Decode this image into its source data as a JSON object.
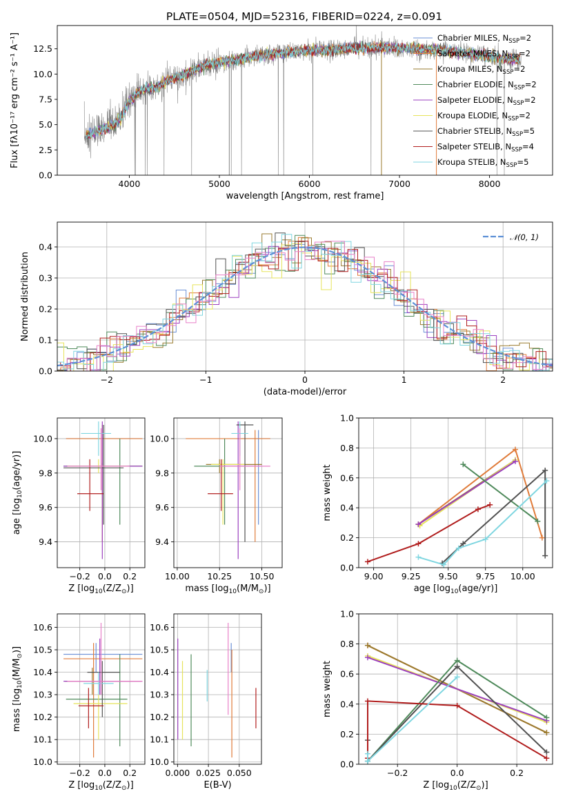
{
  "figure": {
    "title": "PLATE=0504, MJD=52316, FIBERID=0224, z=0.091",
    "colors": {
      "Chabrier MILES": "#6a8fd6",
      "Salpeter MILES": "#e07b39",
      "Kroupa MILES": "#9a7b2f",
      "Chabrier ELODIE": "#4f8a5b",
      "Salpeter ELODIE": "#9b3fbf",
      "Kroupa ELODIE": "#e6e35a",
      "Chabrier STELIB": "#505050",
      "Salpeter STELIB": "#b01c1c",
      "Kroupa STELIB": "#7fd6e0",
      "data": "#808080",
      "pink": "#e87fc8",
      "normal_curve": "#5b8fd6"
    }
  },
  "chart_data": [
    {
      "id": "spectrum",
      "type": "line",
      "xlabel": "wavelength [Angstrom, rest frame]",
      "ylabel": "Flux [fλ10⁻¹⁷ erg cm⁻² s⁻¹ A⁻¹]",
      "xlim": [
        3200,
        8700
      ],
      "ylim": [
        0,
        14.8
      ],
      "xticks": [
        4000,
        5000,
        6000,
        7000,
        8000
      ],
      "yticks": [
        0.0,
        2.5,
        5.0,
        7.5,
        10.0,
        12.5
      ],
      "x_range_data": [
        3500,
        8350
      ],
      "envelope": {
        "x": [
          3500,
          3600,
          3700,
          3800,
          3900,
          4000,
          4100,
          4200,
          4300,
          4400,
          4500,
          4700,
          4900,
          5100,
          5300,
          5500,
          5700,
          6000,
          6300,
          6600,
          6900,
          7200,
          7500,
          7800,
          8100,
          8350
        ],
        "y": [
          3.8,
          4.2,
          4.5,
          4.9,
          5.6,
          7.3,
          8.2,
          8.5,
          8.6,
          9.3,
          9.6,
          10.3,
          11.0,
          11.3,
          11.6,
          11.9,
          12.1,
          12.3,
          12.4,
          12.6,
          12.6,
          12.5,
          12.3,
          12.0,
          11.6,
          11.4
        ]
      },
      "legend": [
        {
          "label": "Chabrier MILES, N",
          "sub": "SSP",
          "tail": "=2",
          "color": "Chabrier MILES"
        },
        {
          "label": "Salpeter MILES, N",
          "sub": "SSP",
          "tail": "=2",
          "color": "Salpeter MILES"
        },
        {
          "label": "Kroupa MILES, N",
          "sub": "SSP",
          "tail": "=2",
          "color": "Kroupa MILES"
        },
        {
          "label": "Chabrier ELODIE, N",
          "sub": "SSP",
          "tail": "=2",
          "color": "Chabrier ELODIE"
        },
        {
          "label": "Salpeter ELODIE, N",
          "sub": "SSP",
          "tail": "=2",
          "color": "Salpeter ELODIE"
        },
        {
          "label": "Kroupa ELODIE, N",
          "sub": "SSP",
          "tail": "=2",
          "color": "Kroupa ELODIE"
        },
        {
          "label": "Chabrier STELIB, N",
          "sub": "SSP",
          "tail": "=5",
          "color": "Chabrier STELIB"
        },
        {
          "label": "Salpeter STELIB, N",
          "sub": "SSP",
          "tail": "=4",
          "color": "Salpeter STELIB"
        },
        {
          "label": "Kroupa STELIB, N",
          "sub": "SSP",
          "tail": "=5",
          "color": "Kroupa STELIB"
        }
      ],
      "legend_position": "top-right"
    },
    {
      "id": "residuals",
      "type": "histogram",
      "xlabel": "(data-model)/error",
      "ylabel": "Normed distribution",
      "xlim": [
        -2.5,
        2.5
      ],
      "ylim": [
        0,
        0.48
      ],
      "xticks": [
        -2,
        -1,
        0,
        1,
        2
      ],
      "yticks": [
        0.0,
        0.1,
        0.2,
        0.3,
        0.4
      ],
      "grid": true,
      "bin_width": 0.1,
      "legend": [
        {
          "label": "𝒩(0, 1)",
          "color": "normal_curve"
        }
      ],
      "legend_position": "top-right"
    },
    {
      "id": "age_vs_Z",
      "type": "errorbar",
      "xlabel": "Z [log₁₀(Z/Z⊙)]",
      "ylabel": "age  [log₁₀(age/yr)]",
      "xlim": [
        -0.38,
        0.32
      ],
      "ylim": [
        9.25,
        10.12
      ],
      "xticks": [
        -0.2,
        0.0,
        0.2
      ],
      "xtick_labels": [
        "−0.2",
        "0.0",
        "0.2"
      ],
      "yticks": [
        9.4,
        9.6,
        9.8,
        10.0
      ],
      "grid": true,
      "points": [
        {
          "c": "Chabrier MILES",
          "x": 0.0,
          "xl": -0.31,
          "xh": 0.3,
          "y": 10.0,
          "yl": 10.0,
          "yh": 10.0
        },
        {
          "c": "Salpeter MILES",
          "x": -0.02,
          "xl": -0.31,
          "xh": 0.3,
          "y": 10.0,
          "yl": 9.4,
          "yh": 10.08
        },
        {
          "c": "Kroupa MILES",
          "x": -0.02,
          "xl": -0.31,
          "xh": 0.3,
          "y": 9.84,
          "yl": 9.82,
          "yh": 9.86
        },
        {
          "c": "Chabrier ELODIE",
          "x": 0.12,
          "xl": -0.33,
          "xh": 0.3,
          "y": 9.84,
          "yl": 9.5,
          "yh": 10.0
        },
        {
          "c": "Salpeter ELODIE",
          "x": -0.02,
          "xl": -0.33,
          "xh": 0.3,
          "y": 9.84,
          "yl": 9.3,
          "yh": 10.1
        },
        {
          "c": "Kroupa ELODIE",
          "x": -0.05,
          "xl": -0.3,
          "xh": 0.18,
          "y": 9.84,
          "yl": 9.8,
          "yh": 9.88
        },
        {
          "c": "Chabrier STELIB",
          "x": -0.01,
          "xl": -0.33,
          "xh": 0.15,
          "y": 9.83,
          "yl": 9.5,
          "yh": 10.08
        },
        {
          "c": "Salpeter STELIB",
          "x": -0.12,
          "xl": -0.22,
          "xh": -0.01,
          "y": 9.68,
          "yl": 9.58,
          "yh": 9.88
        },
        {
          "c": "Kroupa STELIB",
          "x": -0.05,
          "xl": -0.19,
          "xh": 0.05,
          "y": 10.03,
          "yl": 9.9,
          "yh": 10.1
        },
        {
          "c": "pink",
          "x": -0.03,
          "xl": -0.3,
          "xh": 0.2,
          "y": 9.84,
          "yl": 9.7,
          "yh": 10.06
        }
      ]
    },
    {
      "id": "age_vs_mass",
      "type": "errorbar",
      "xlabel": "mass [log₁₀(M/M⊙)]",
      "ylabel": "",
      "xlim": [
        9.98,
        10.62
      ],
      "ylim": [
        9.25,
        10.12
      ],
      "xticks": [
        10.0,
        10.25,
        10.5
      ],
      "xtick_labels": [
        "10.00",
        "10.25",
        "10.50"
      ],
      "yticks": [
        9.4,
        9.6,
        9.8,
        10.0
      ],
      "grid": true,
      "points": [
        {
          "c": "Chabrier MILES",
          "x": 10.48,
          "xl": 10.38,
          "xh": 10.55,
          "y": 10.0,
          "yl": 9.5,
          "yh": 10.05
        },
        {
          "c": "Salpeter MILES",
          "x": 10.46,
          "xl": 10.05,
          "xh": 10.55,
          "y": 10.0,
          "yl": 9.4,
          "yh": 10.05
        },
        {
          "c": "Kroupa MILES",
          "x": 10.25,
          "xl": 10.17,
          "xh": 10.5,
          "y": 9.85,
          "yl": 9.8,
          "yh": 9.88
        },
        {
          "c": "Chabrier ELODIE",
          "x": 10.28,
          "xl": 10.1,
          "xh": 10.45,
          "y": 9.84,
          "yl": 9.5,
          "yh": 10.0
        },
        {
          "c": "Salpeter ELODIE",
          "x": 10.36,
          "xl": 10.25,
          "xh": 10.5,
          "y": 9.84,
          "yl": 9.3,
          "yh": 10.1
        },
        {
          "c": "Kroupa ELODIE",
          "x": 10.27,
          "xl": 10.2,
          "xh": 10.4,
          "y": 9.85,
          "yl": 9.5,
          "yh": 9.88
        },
        {
          "c": "Chabrier STELIB",
          "x": 10.4,
          "xl": 10.35,
          "xh": 10.45,
          "y": 10.08,
          "yl": 9.4,
          "yh": 10.1
        },
        {
          "c": "Salpeter STELIB",
          "x": 10.26,
          "xl": 10.18,
          "xh": 10.33,
          "y": 9.68,
          "yl": 9.58,
          "yh": 9.88
        },
        {
          "c": "Kroupa STELIB",
          "x": 10.37,
          "xl": 10.32,
          "xh": 10.42,
          "y": 10.03,
          "yl": 9.9,
          "yh": 10.1
        },
        {
          "c": "pink",
          "x": 10.37,
          "xl": 10.25,
          "xh": 10.55,
          "y": 9.84,
          "yl": 9.7,
          "yh": 10.06
        }
      ]
    },
    {
      "id": "weight_vs_age",
      "type": "line",
      "xlabel": "age  [log₁₀(age/yr)]",
      "ylabel": "mass weight",
      "xlim": [
        8.9,
        10.2
      ],
      "ylim": [
        0,
        1.0
      ],
      "xticks": [
        9.0,
        9.25,
        9.5,
        9.75,
        10.0
      ],
      "xtick_labels": [
        "9.00",
        "9.25",
        "9.50",
        "9.75",
        "10.00"
      ],
      "yticks": [
        0.0,
        0.2,
        0.4,
        0.6,
        0.8,
        1.0
      ],
      "grid": true,
      "series": [
        {
          "c": "Salpeter MILES",
          "x": [
            9.3,
            9.95,
            10.13
          ],
          "y": [
            0.29,
            0.79,
            0.2
          ]
        },
        {
          "c": "Kroupa MILES",
          "x": [
            9.3,
            9.95
          ],
          "y": [
            0.29,
            0.72
          ]
        },
        {
          "c": "Kroupa ELODIE",
          "x": [
            9.31,
            9.95
          ],
          "y": [
            0.28,
            0.72
          ]
        },
        {
          "c": "Salpeter ELODIE",
          "x": [
            9.3,
            9.95
          ],
          "y": [
            0.29,
            0.71
          ]
        },
        {
          "c": "Chabrier ELODIE",
          "x": [
            9.6,
            10.1
          ],
          "y": [
            0.69,
            0.31
          ]
        },
        {
          "c": "Chabrier STELIB",
          "x": [
            9.46,
            9.6,
            10.15,
            10.15
          ],
          "y": [
            0.03,
            0.16,
            0.65,
            0.08
          ]
        },
        {
          "c": "Salpeter STELIB",
          "x": [
            8.96,
            9.3,
            9.7,
            9.78
          ],
          "y": [
            0.04,
            0.16,
            0.39,
            0.42
          ]
        },
        {
          "c": "Kroupa STELIB",
          "x": [
            9.3,
            9.47,
            9.57,
            9.75,
            10.16
          ],
          "y": [
            0.07,
            0.02,
            0.13,
            0.19,
            0.58
          ]
        }
      ]
    },
    {
      "id": "mass_vs_Z",
      "type": "errorbar",
      "xlabel": "Z [log₁₀(Z/Z⊙)]",
      "ylabel": "mass [log₁₀(M/M⊙)]",
      "xlim": [
        -0.38,
        0.32
      ],
      "ylim": [
        9.99,
        10.66
      ],
      "xticks": [
        -0.2,
        0.0,
        0.2
      ],
      "xtick_labels": [
        "−0.2",
        "0.0",
        "0.2"
      ],
      "yticks": [
        10.0,
        10.1,
        10.2,
        10.3,
        10.4,
        10.5,
        10.6
      ],
      "grid": true,
      "points": [
        {
          "c": "Chabrier MILES",
          "x": -0.07,
          "xl": -0.33,
          "xh": 0.3,
          "y": 10.48,
          "yl": 10.4,
          "yh": 10.53
        },
        {
          "c": "Salpeter MILES",
          "x": -0.09,
          "xl": -0.33,
          "xh": 0.3,
          "y": 10.46,
          "yl": 10.02,
          "yh": 10.53
        },
        {
          "c": "Kroupa MILES",
          "x": -0.1,
          "xl": -0.32,
          "xh": 0.29,
          "y": 10.36,
          "yl": 10.3,
          "yh": 10.42
        },
        {
          "c": "Chabrier ELODIE",
          "x": 0.12,
          "xl": -0.31,
          "xh": 0.18,
          "y": 10.28,
          "yl": 10.07,
          "yh": 10.48
        },
        {
          "c": "Salpeter ELODIE",
          "x": -0.04,
          "xl": -0.33,
          "xh": 0.3,
          "y": 10.36,
          "yl": 10.3,
          "yh": 10.55
        },
        {
          "c": "Kroupa ELODIE",
          "x": -0.05,
          "xl": -0.25,
          "xh": 0.18,
          "y": 10.26,
          "yl": 10.1,
          "yh": 10.3
        },
        {
          "c": "Chabrier STELIB",
          "x": -0.02,
          "xl": -0.14,
          "xh": 0.12,
          "y": 10.4,
          "yl": 10.2,
          "yh": 10.45
        },
        {
          "c": "Salpeter STELIB",
          "x": -0.13,
          "xl": -0.21,
          "xh": -0.01,
          "y": 10.25,
          "yl": 10.15,
          "yh": 10.33
        },
        {
          "c": "Kroupa STELIB",
          "x": -0.05,
          "xl": -0.17,
          "xh": 0.07,
          "y": 10.35,
          "yl": 10.3,
          "yh": 10.4
        },
        {
          "c": "pink",
          "x": -0.03,
          "xl": -0.3,
          "xh": 0.3,
          "y": 10.36,
          "yl": 10.3,
          "yh": 10.62
        }
      ]
    },
    {
      "id": "mass_vs_ebv",
      "type": "errorbar",
      "xlabel": "E(B-V)",
      "ylabel": "",
      "xlim": [
        -0.003,
        0.068
      ],
      "ylim": [
        9.99,
        10.66
      ],
      "xticks": [
        0.0,
        0.025,
        0.05
      ],
      "xtick_labels": [
        "0.000",
        "0.025",
        "0.050"
      ],
      "yticks": [
        10.0,
        10.1,
        10.2,
        10.3,
        10.4,
        10.5,
        10.6
      ],
      "grid": true,
      "points": [
        {
          "c": "Salpeter ELODIE",
          "x": 0.0002,
          "yl": 10.1,
          "yh": 10.55
        },
        {
          "c": "Kroupa ELODIE",
          "x": 0.004,
          "yl": 10.1,
          "yh": 10.45
        },
        {
          "c": "Chabrier ELODIE",
          "x": 0.011,
          "yl": 10.07,
          "yh": 10.48
        },
        {
          "c": "Kroupa STELIB",
          "x": 0.024,
          "yl": 10.27,
          "yh": 10.41
        },
        {
          "c": "pink",
          "x": 0.041,
          "yl": 10.21,
          "yh": 10.62
        },
        {
          "c": "Chabrier MILES",
          "x": 0.0435,
          "yl": 10.4,
          "yh": 10.53
        },
        {
          "c": "Salpeter MILES",
          "x": 0.044,
          "yl": 10.02,
          "yh": 10.5
        },
        {
          "c": "Salpeter STELIB",
          "x": 0.0635,
          "yl": 10.15,
          "yh": 10.33
        }
      ]
    },
    {
      "id": "weight_vs_Z",
      "type": "line",
      "xlabel": "Z [log₁₀(Z/Z⊙)]",
      "ylabel": "mass weight",
      "xlim": [
        -0.33,
        0.32
      ],
      "ylim": [
        0,
        1.0
      ],
      "xticks": [
        -0.2,
        0.0,
        0.2
      ],
      "xtick_labels": [
        "−0.2",
        "0.0",
        "0.2"
      ],
      "yticks": [
        0.0,
        0.2,
        0.4,
        0.6,
        0.8,
        1.0
      ],
      "grid": true,
      "series": [
        {
          "c": "Salpeter MILES",
          "x": [
            -0.3,
            0.3
          ],
          "y": [
            0.79,
            0.21
          ]
        },
        {
          "c": "Kroupa MILES",
          "x": [
            -0.3,
            0.3
          ],
          "y": [
            0.79,
            0.21
          ]
        },
        {
          "c": "Kroupa ELODIE",
          "x": [
            -0.3,
            0.3
          ],
          "y": [
            0.72,
            0.28
          ]
        },
        {
          "c": "Salpeter ELODIE",
          "x": [
            -0.3,
            0.3
          ],
          "y": [
            0.71,
            0.29
          ]
        },
        {
          "c": "Chabrier ELODIE",
          "x": [
            -0.3,
            0.0,
            0.3
          ],
          "y": [
            0.02,
            0.69,
            0.31
          ]
        },
        {
          "c": "Chabrier STELIB",
          "x": [
            -0.3,
            -0.3,
            0.0,
            0.3
          ],
          "y": [
            0.16,
            0.02,
            0.65,
            0.08
          ]
        },
        {
          "c": "Salpeter STELIB",
          "x": [
            -0.3,
            -0.3,
            0.0,
            0.3
          ],
          "y": [
            0.04,
            0.42,
            0.39,
            0.04
          ]
        },
        {
          "c": "Kroupa STELIB",
          "x": [
            -0.3,
            -0.3,
            0.0
          ],
          "y": [
            0.07,
            0.02,
            0.58
          ]
        }
      ]
    }
  ]
}
